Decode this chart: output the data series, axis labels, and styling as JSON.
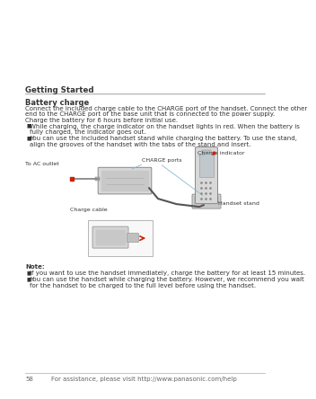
{
  "bg_color": "#ffffff",
  "header_section": "Getting Started",
  "header_line_color": "#aaaaaa",
  "section_title": "Battery charge",
  "body_lines": [
    "Connect the included charge cable to the CHARGE port of the handset. Connect the other",
    "end to the CHARGE port of the base unit that is connected to the power supply.",
    "Charge the battery for 6 hours before initial use."
  ],
  "bullet1_line1": "While charging, the charge indicator on the handset lights in red. When the battery is",
  "bullet1_line2": "fully charged, the indicator goes out.",
  "bullet2_line1": "You can use the included handset stand while charging the battery. To use the stand,",
  "bullet2_line2": "align the grooves of the handset with the tabs of the stand and insert.",
  "note_title": "Note:",
  "note1": "If you want to use the handset immediately, charge the battery for at least 15 minutes.",
  "note2_line1": "You can use the handset while charging the battery. However, we recommend you wait",
  "note2_line2": "for the handset to be charged to the full level before using the handset.",
  "footer_page": "58",
  "footer_text": "For assistance, please visit http://www.panasonic.com/help",
  "label_ac": "To AC outlet",
  "label_charge_ports": "CHARGE ports",
  "label_charge_indicator": "Charge indicator",
  "label_charge_cable": "Charge cable",
  "label_handset_stand": "Handset stand",
  "text_color": "#333333",
  "header_color": "#333333",
  "footer_color": "#666666",
  "accent_red": "#cc2200",
  "diagram_fill": "#e0e0e0",
  "diagram_fill2": "#d0d0d0",
  "diagram_outline": "#888888",
  "arrow_line_color": "#88bbcc",
  "wire_color": "#888888"
}
